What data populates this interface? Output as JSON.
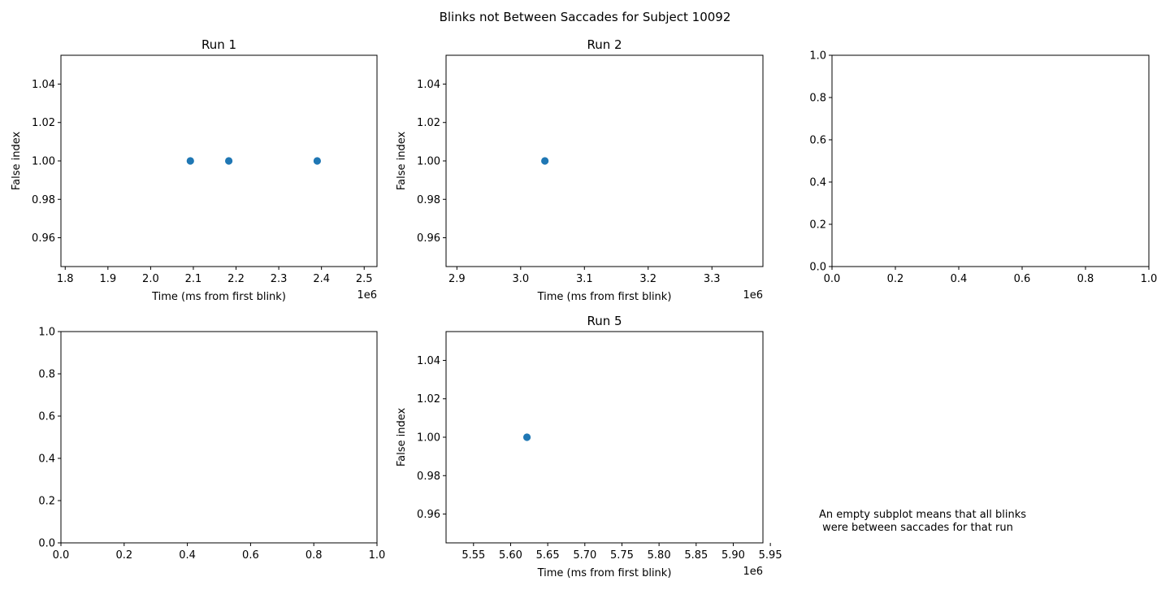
{
  "figure": {
    "suptitle": "Blinks not Between Saccades for Subject 10092",
    "note_lines": [
      "An empty subplot means that all blinks",
      " were between saccades for that run"
    ]
  },
  "chart_data": [
    {
      "type": "scatter",
      "title": "Run 1",
      "xlabel": "Time (ms from first blink)",
      "ylabel": "False index",
      "x_offset_label": "1e6",
      "xlim": [
        1.79,
        2.53
      ],
      "ylim": [
        0.945,
        1.055
      ],
      "xticks": [
        1.8,
        1.9,
        2.0,
        2.1,
        2.2,
        2.3,
        2.4,
        2.5
      ],
      "xtick_labels": [
        "1.8",
        "1.9",
        "2.0",
        "2.1",
        "2.2",
        "2.3",
        "2.4",
        "2.5"
      ],
      "yticks": [
        0.96,
        0.98,
        1.0,
        1.02,
        1.04
      ],
      "ytick_labels": [
        "0.96",
        "0.98",
        "1.00",
        "1.02",
        "1.04"
      ],
      "points": [
        {
          "x": 2.093,
          "y": 1.0
        },
        {
          "x": 2.183,
          "y": 1.0
        },
        {
          "x": 2.39,
          "y": 1.0
        }
      ],
      "color": "#1f77b4",
      "grid": false
    },
    {
      "type": "scatter",
      "title": "Run 2",
      "xlabel": "Time (ms from first blink)",
      "ylabel": "False index",
      "x_offset_label": "1e6",
      "xlim": [
        2.883,
        3.38
      ],
      "ylim": [
        0.945,
        1.055
      ],
      "xticks": [
        2.9,
        3.0,
        3.1,
        3.2,
        3.3
      ],
      "xtick_labels": [
        "2.9",
        "3.0",
        "3.1",
        "3.2",
        "3.3"
      ],
      "yticks": [
        0.96,
        0.98,
        1.0,
        1.02,
        1.04
      ],
      "ytick_labels": [
        "0.96",
        "0.98",
        "1.00",
        "1.02",
        "1.04"
      ],
      "points": [
        {
          "x": 3.038,
          "y": 1.0
        }
      ],
      "color": "#1f77b4",
      "grid": false
    },
    {
      "type": "scatter",
      "title": "",
      "xlabel": "",
      "ylabel": "",
      "xlim": [
        0,
        1
      ],
      "ylim": [
        0,
        1
      ],
      "xticks": [
        0,
        0.2,
        0.4,
        0.6,
        0.8,
        1.0
      ],
      "xtick_labels": [
        "0.0",
        "0.2",
        "0.4",
        "0.6",
        "0.8",
        "1.0"
      ],
      "yticks": [
        0,
        0.2,
        0.4,
        0.6,
        0.8,
        1.0
      ],
      "ytick_labels": [
        "0.0",
        "0.2",
        "0.4",
        "0.6",
        "0.8",
        "1.0"
      ],
      "points": [],
      "grid": false
    },
    {
      "type": "scatter",
      "title": "",
      "xlabel": "",
      "ylabel": "",
      "xlim": [
        0,
        1
      ],
      "ylim": [
        0,
        1
      ],
      "xticks": [
        0,
        0.2,
        0.4,
        0.6,
        0.8,
        1.0
      ],
      "xtick_labels": [
        "0.0",
        "0.2",
        "0.4",
        "0.6",
        "0.8",
        "1.0"
      ],
      "yticks": [
        0,
        0.2,
        0.4,
        0.6,
        0.8,
        1.0
      ],
      "ytick_labels": [
        "0.0",
        "0.2",
        "0.4",
        "0.6",
        "0.8",
        "1.0"
      ],
      "points": [],
      "grid": false
    },
    {
      "type": "scatter",
      "title": "Run 5",
      "xlabel": "Time (ms from first blink)",
      "ylabel": "False index",
      "x_offset_label": "1e6",
      "xlim": [
        5.513,
        5.94
      ],
      "ylim": [
        0.945,
        1.055
      ],
      "xticks": [
        5.55,
        5.6,
        5.65,
        5.7,
        5.75,
        5.8,
        5.85,
        5.9,
        5.95
      ],
      "xtick_labels": [
        "5.55",
        "5.60",
        "5.65",
        "5.70",
        "5.75",
        "5.80",
        "5.85",
        "5.90",
        "5.95"
      ],
      "yticks": [
        0.96,
        0.98,
        1.0,
        1.02,
        1.04
      ],
      "ytick_labels": [
        "0.96",
        "0.98",
        "1.00",
        "1.02",
        "1.04"
      ],
      "points": [
        {
          "x": 5.622,
          "y": 1.0
        }
      ],
      "color": "#1f77b4",
      "grid": false
    }
  ]
}
